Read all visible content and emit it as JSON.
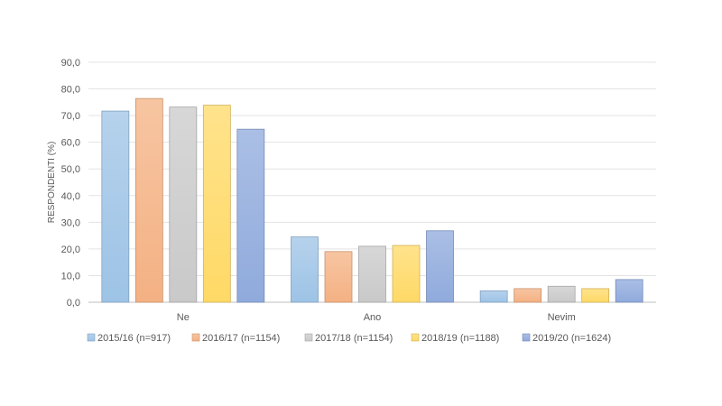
{
  "chart_data": {
    "type": "bar",
    "title": "",
    "xlabel": "",
    "ylabel": "RESPONDENTI (%)",
    "ylim": [
      0,
      90
    ],
    "yticks": [
      "0,0",
      "10,0",
      "20,0",
      "30,0",
      "40,0",
      "50,0",
      "60,0",
      "70,0",
      "80,0",
      "90,0"
    ],
    "grid": true,
    "legend_position": "bottom",
    "categories": [
      "Ne",
      "Ano",
      "Nevim"
    ],
    "series": [
      {
        "name": "2015/16 (n=917)",
        "color": "#9dc3e6",
        "values": [
          71.7,
          24.5,
          4.3
        ]
      },
      {
        "name": "2016/17 (n=1154)",
        "color": "#f4b183",
        "values": [
          76.4,
          19.0,
          5.1
        ]
      },
      {
        "name": "2017/18 (n=1154)",
        "color": "#c9c9c9",
        "values": [
          73.2,
          21.0,
          6.0
        ]
      },
      {
        "name": "2018/19 (n=1188)",
        "color": "#ffd966",
        "values": [
          73.9,
          21.3,
          5.1
        ]
      },
      {
        "name": "2019/20 (n=1624)",
        "color": "#8faadc",
        "values": [
          64.9,
          26.8,
          8.5
        ]
      }
    ]
  }
}
